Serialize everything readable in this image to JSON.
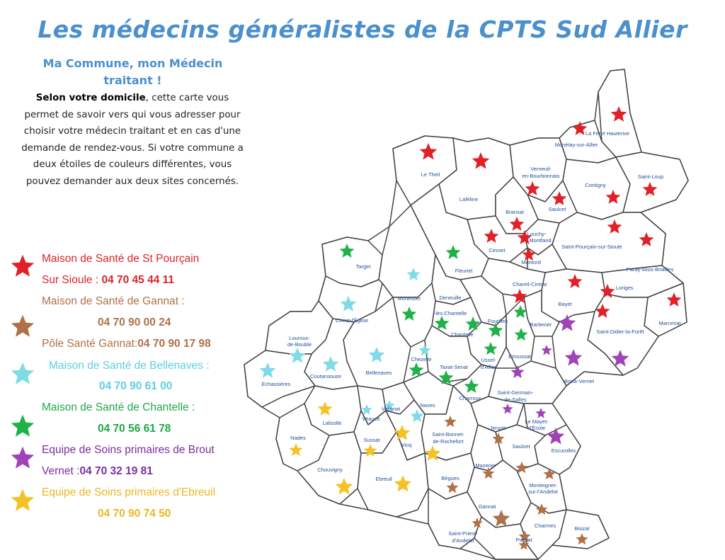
{
  "title": "Les médecins généralistes de la CPTS Sud Allier",
  "subtitle": "Ma Commune, mon Médecin traitant !",
  "intro": {
    "bold": "Selon votre domicile",
    "text": ", cette carte vous permet de savoir vers qui vous  adresser pour choisir votre médecin traitant et en cas d'une demande de rendez-vous. Si votre commune a deux étoiles de couleurs différentes, vous pouvez  demander aux deux sites concernés."
  },
  "legend": [
    {
      "line1": "Maison de Santé de St Pourçain",
      "line2_prefix": "Sur Sioule : ",
      "line2_number": "04 70 45 44 11",
      "color": "#e02228",
      "icon": "red-star-icon"
    },
    {
      "line1": "Maison de Santé de Gannat :",
      "line2_prefix": "",
      "line2_number": "04 70 90 00 24",
      "color": "#b07048",
      "icon": "brown-star-icon"
    },
    {
      "line1": "Pôle Santé Gannat:",
      "line1_number": "04 70 90 17 98",
      "color": "#b07048",
      "icon": "brown-star-icon"
    },
    {
      "line1": "Maison de Santé de Bellenaves :",
      "line2_prefix": "",
      "line2_number": "04 70 90 61 00",
      "color": "#63d3e2",
      "icon": "cyan-star-icon"
    },
    {
      "line1": "Maison de Santé de Chantelle :",
      "line2_prefix": "",
      "line2_number": "04 70 56 61 78",
      "color": "#1fb24a",
      "icon": "green-star-icon"
    },
    {
      "line1": "Equipe de Soins primaires de Brout",
      "line2_prefix": "Vernet :",
      "line2_number": "04 70 32 19 81",
      "color": "#7b2ea0",
      "icon": "purple-star-icon"
    },
    {
      "line1": "Equipe de Soins primaires d'Ebreuil",
      "line2_prefix": "",
      "line2_number": "04 70 90 74 50",
      "color": "#f2c12e",
      "icon": "yellow-star-icon"
    }
  ],
  "map": {
    "star_colors": {
      "red": "#e02228",
      "brown": "#b07048",
      "cyan": "#7fdbe6",
      "green": "#1fb24a",
      "purple": "#a043b8",
      "yellow": "#f5c226"
    },
    "towns": [
      {
        "name": "La Ferté Hauterive"
      },
      {
        "name": "Monétay-sur-Allier"
      },
      {
        "name": "Le Theil"
      },
      {
        "name": "Verneuil-"
      },
      {
        "name": "en-Bourbonnais"
      },
      {
        "name": "Contigny"
      },
      {
        "name": "Saint-Loup"
      },
      {
        "name": "Laféline"
      },
      {
        "name": "Saulcet"
      },
      {
        "name": "Bransat"
      },
      {
        "name": "Louchy-"
      },
      {
        "name": "Montfand"
      },
      {
        "name": "Cesset"
      },
      {
        "name": "Saint-Pourçain-sur-Sioule"
      },
      {
        "name": "Montord"
      },
      {
        "name": "Target"
      },
      {
        "name": "Fleuriel"
      },
      {
        "name": "Paray-sous-Briailles"
      },
      {
        "name": "Chareil-Cintrat"
      },
      {
        "name": "Loriges"
      },
      {
        "name": "Monestier"
      },
      {
        "name": "Deneuille"
      },
      {
        "name": "-lès-Chantelle"
      },
      {
        "name": "Chirat-l'Église"
      },
      {
        "name": "Fourilles"
      },
      {
        "name": "Bayet"
      },
      {
        "name": "Marcenat"
      },
      {
        "name": "Chantelle"
      },
      {
        "name": "Saint-Didier-la-Forêt"
      },
      {
        "name": "Barberier"
      },
      {
        "name": "Louroux-"
      },
      {
        "name": "de-Bouble"
      },
      {
        "name": "Chezelle"
      },
      {
        "name": "Ussel-"
      },
      {
        "name": "d'Allier"
      },
      {
        "name": "Etroussat"
      },
      {
        "name": "Bellenaves"
      },
      {
        "name": "Taxat-Senat"
      },
      {
        "name": "Coutansouze"
      },
      {
        "name": "Broût-Vernet"
      },
      {
        "name": "Echassières"
      },
      {
        "name": "Charroux"
      },
      {
        "name": "Saint-Germain-"
      },
      {
        "name": "de-Salles"
      },
      {
        "name": "Valignat"
      },
      {
        "name": "Naves"
      },
      {
        "name": "Lalizolle"
      },
      {
        "name": "Veauce"
      },
      {
        "name": "Jenzat"
      },
      {
        "name": "Le Mayet-"
      },
      {
        "name": "d'École"
      },
      {
        "name": "Saint-Bonnet-"
      },
      {
        "name": "de-Rochefort"
      },
      {
        "name": "Sussat"
      },
      {
        "name": "Vicq"
      },
      {
        "name": "Nades"
      },
      {
        "name": "Escurolles"
      },
      {
        "name": "Saulzet"
      },
      {
        "name": "Mazerier"
      },
      {
        "name": "Chouvigny"
      },
      {
        "name": "Ebreuil"
      },
      {
        "name": "Bègues"
      },
      {
        "name": "Monteignet-"
      },
      {
        "name": "sur-l'Andelot"
      },
      {
        "name": "Gannat"
      },
      {
        "name": "Charmes"
      },
      {
        "name": "Biozat"
      },
      {
        "name": "Saint-Priest-"
      },
      {
        "name": "d'Andelot"
      },
      {
        "name": "Poëzat"
      }
    ]
  }
}
